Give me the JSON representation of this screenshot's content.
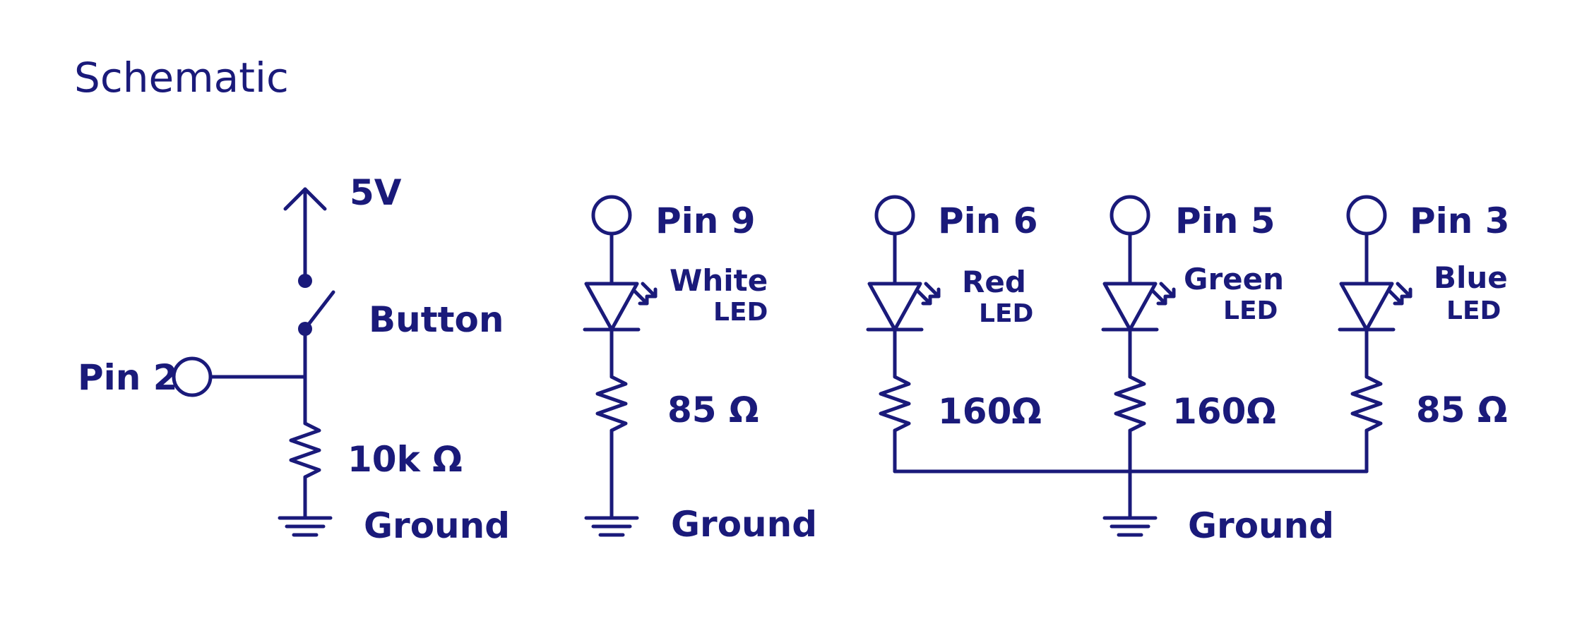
{
  "title": "Schematic",
  "ink_color": "#1a1a7a",
  "button_circuit": {
    "supply": "5V",
    "switch": "Button",
    "pin": "Pin 2",
    "resistor": "10k Ω",
    "ground": "Ground"
  },
  "white_led_circuit": {
    "pin": "Pin 9",
    "led_color": "White",
    "led_word": "LED",
    "resistor": "85 Ω",
    "ground": "Ground"
  },
  "rgb_led_circuit": {
    "channels": [
      {
        "pin": "Pin 6",
        "led_color": "Red",
        "led_word": "LED",
        "resistor": "160Ω"
      },
      {
        "pin": "Pin 5",
        "led_color": "Green",
        "led_word": "LED",
        "resistor": "160Ω"
      },
      {
        "pin": "Pin 3",
        "led_color": "Blue",
        "led_word": "LED",
        "resistor": "85 Ω"
      }
    ],
    "ground": "Ground"
  }
}
